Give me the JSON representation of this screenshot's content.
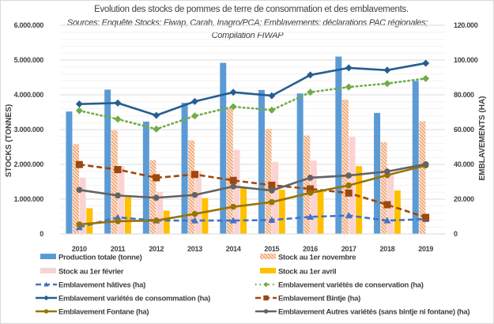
{
  "chart_data": {
    "type": "bar",
    "title": "Evolution des stocks de pommes de terre de consommation et des emblavements.",
    "subtitle_lines": [
      "Sources: Enquête Stocks: Fiwap, Carah, Inagro/PCA; Emblavements: déclarations PAC régionales;",
      "Compilation FIWAP"
    ],
    "categories": [
      "2010",
      "2011",
      "2012",
      "2013",
      "2014",
      "2015",
      "2016",
      "2017",
      "2018",
      "2019"
    ],
    "y_left": {
      "label": "STOCKS (TONNES)",
      "range": [
        0,
        6000000
      ],
      "ticks": [
        0,
        1000000,
        2000000,
        3000000,
        4000000,
        5000000,
        6000000
      ],
      "tick_labels": [
        "0",
        "1.000.000",
        "2.000.000",
        "3.000.000",
        "4.000.000",
        "5.000.000",
        "6.000.000"
      ]
    },
    "y_right": {
      "label": "EMBLAVEMENTS (HA)",
      "range": [
        0,
        120000
      ],
      "ticks": [
        0,
        20000,
        40000,
        60000,
        80000,
        100000,
        120000
      ],
      "tick_labels": [
        "0",
        "20.000",
        "40.000",
        "60.000",
        "80.000",
        "100.000",
        "120.000"
      ]
    },
    "grid": true,
    "legend_position": "bottom",
    "bar_series": [
      {
        "name": "Production totale (tonne)",
        "color": "#5b9bd5",
        "pattern": "solid",
        "values": [
          3520000,
          4150000,
          3230000,
          3770000,
          4920000,
          4140000,
          4040000,
          5100000,
          3480000,
          4400000
        ]
      },
      {
        "name": "Stock au 1er novembre",
        "color": "#ed7d31",
        "pattern": "hatch",
        "values": [
          2580000,
          2980000,
          2120000,
          2690000,
          3620000,
          3020000,
          2830000,
          3860000,
          2640000,
          3240000
        ]
      },
      {
        "name": "Stock au 1er février",
        "color": "#f8cbcb",
        "pattern": "light",
        "values": [
          1620000,
          1950000,
          1210000,
          1800000,
          2420000,
          2070000,
          2110000,
          2790000,
          1690000,
          null
        ]
      },
      {
        "name": "Stock au 1er avril",
        "color": "#ffc000",
        "pattern": "solid",
        "values": [
          740000,
          1060000,
          670000,
          1030000,
          1350000,
          1270000,
          1270000,
          1950000,
          1250000,
          null
        ]
      }
    ],
    "line_series": [
      {
        "name": "Emblavement hâtives (ha)",
        "color": "#4472c4",
        "dash": "dashed",
        "marker": "triangle",
        "axis": "right",
        "values": [
          3800,
          9500,
          7700,
          7700,
          7700,
          8000,
          9800,
          10600,
          7700,
          8500
        ]
      },
      {
        "name": "Emblavement variétés de conservation (ha)",
        "color": "#70ad47",
        "dash": "dotted",
        "marker": "diamond",
        "axis": "right",
        "values": [
          70900,
          66000,
          60300,
          67900,
          73200,
          71200,
          81500,
          84500,
          86500,
          89400
        ]
      },
      {
        "name": "Emblavement variétés de consommation (ha)",
        "color": "#255e91",
        "dash": "solid",
        "marker": "diamond",
        "axis": "right",
        "values": [
          74700,
          75300,
          68200,
          76200,
          81500,
          79500,
          91400,
          95500,
          94200,
          98200
        ]
      },
      {
        "name": "Emblavement Bintje (ha)",
        "color": "#9e480e",
        "dash": "dashed",
        "marker": "square",
        "axis": "right",
        "values": [
          39900,
          37000,
          32300,
          34200,
          30800,
          28000,
          25900,
          23500,
          16800,
          9500
        ]
      },
      {
        "name": "Emblavement Fontane (ha)",
        "color": "#997300",
        "dash": "solid",
        "marker": "circle",
        "axis": "right",
        "values": [
          5500,
          7300,
          7700,
          11500,
          15600,
          18300,
          23600,
          27900,
          33800,
          39400
        ]
      },
      {
        "name": "Emblavement Autres variétés (sans bintje ni fontane) (ha)",
        "color": "#636363",
        "dash": "solid",
        "marker": "circle",
        "axis": "right",
        "values": [
          25300,
          22100,
          20800,
          22400,
          27300,
          25000,
          32300,
          33600,
          35900,
          40100
        ]
      }
    ],
    "legend_order": [
      "Production totale (tonne)",
      "Stock au 1er novembre",
      "Stock au 1er février",
      "Stock au 1er avril",
      "Emblavement hâtives (ha)",
      "Emblavement variétés de conservation (ha)",
      "Emblavement variétés de consommation (ha)",
      "Emblavement Bintje (ha)",
      "Emblavement Fontane (ha)",
      "Emblavement Autres variétés (sans bintje ni fontane) (ha)"
    ]
  }
}
